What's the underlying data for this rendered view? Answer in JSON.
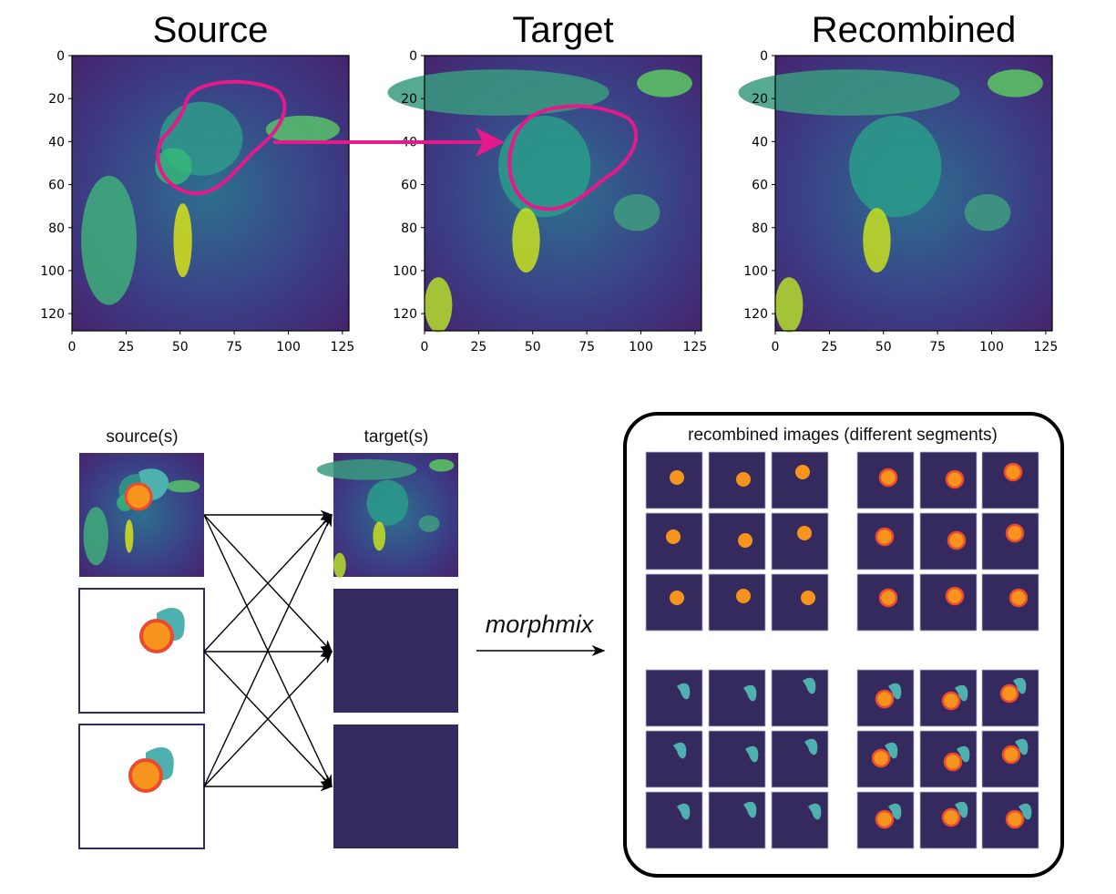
{
  "plots": [
    {
      "title": "Source"
    },
    {
      "title": "Target"
    },
    {
      "title": "Recombined"
    }
  ],
  "y_ticks": [
    "0",
    "20",
    "40",
    "60",
    "80",
    "100",
    "120"
  ],
  "x_ticks": [
    "0",
    "25",
    "50",
    "75",
    "100",
    "125"
  ],
  "labels": {
    "sources": "source(s)",
    "targets": "target(s)",
    "method": "morphmix",
    "recombined": "recombined images (different segments)"
  },
  "colors": {
    "contour": "#e6198a",
    "tile": "#352a5e",
    "orange": "#f7941d",
    "red": "#ec4a2f",
    "teal": "#4fb0b0"
  }
}
